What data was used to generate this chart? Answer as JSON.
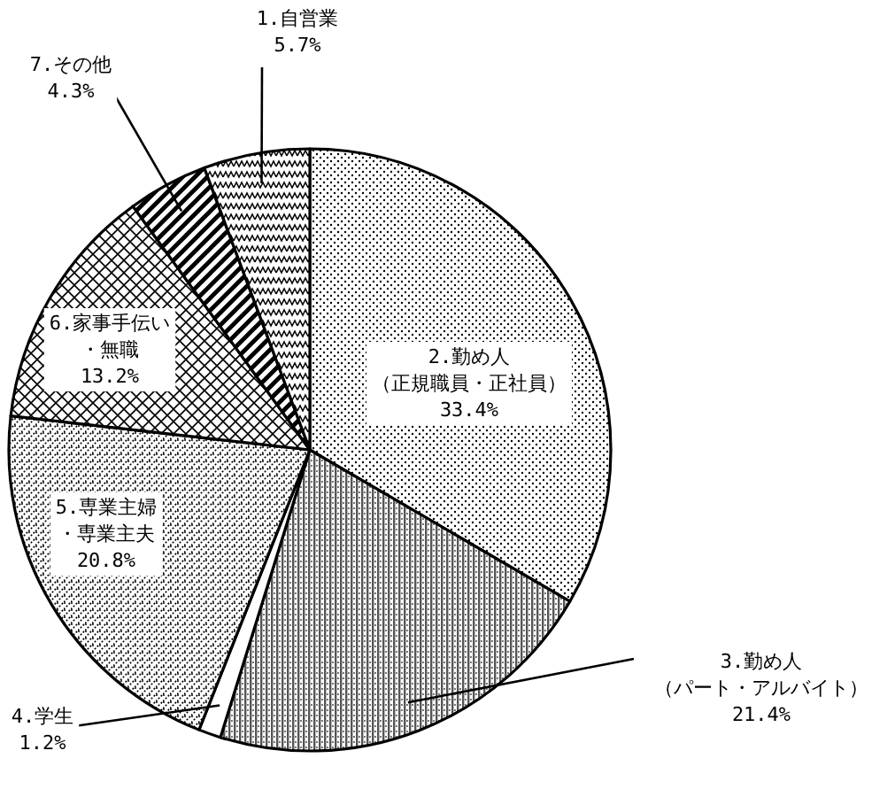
{
  "chart_data": {
    "type": "pie",
    "categories": [
      "2.勤め人（正規職員・正社員）",
      "3.勤め人（パート・アルバイト）",
      "4.学生",
      "5.専業主婦・専業主夫",
      "6.家事手伝い・無職",
      "7.その他",
      "1.自営業"
    ],
    "values": [
      33.4,
      21.4,
      1.2,
      20.8,
      13.2,
      4.3,
      5.7
    ],
    "value_labels": [
      "33.4%",
      "21.4%",
      "1.2%",
      "20.8%",
      "13.2%",
      "4.3%",
      "5.7%"
    ]
  }
}
